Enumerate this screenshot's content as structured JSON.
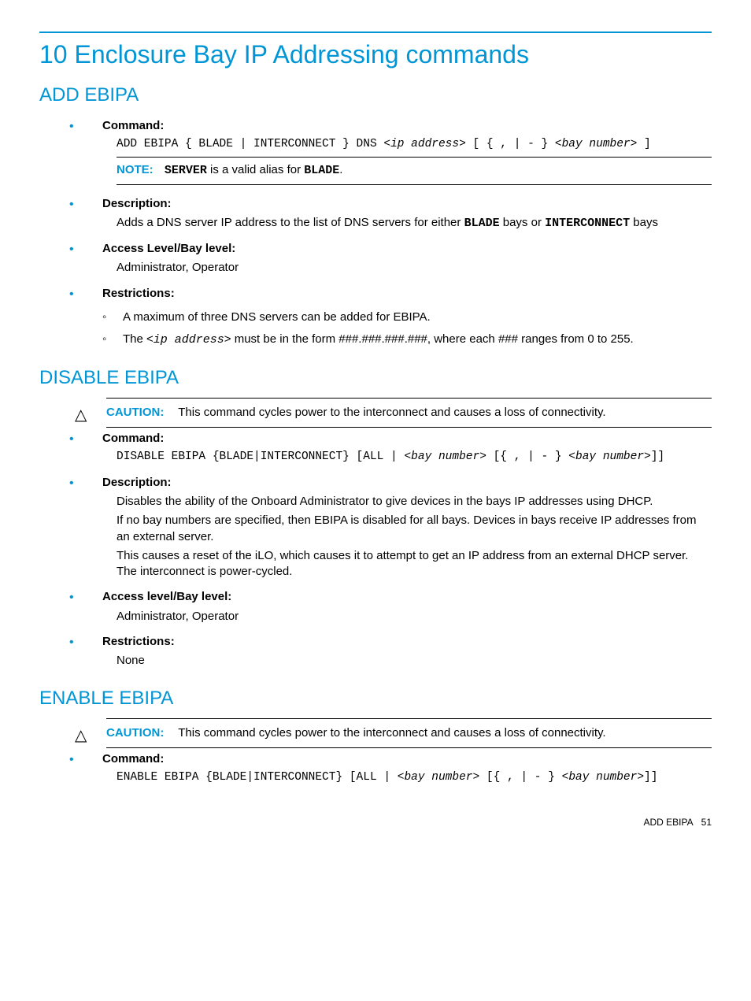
{
  "chapter_title": "10 Enclosure Bay IP Addressing commands",
  "sections": {
    "add": {
      "title": "ADD EBIPA",
      "command_label": "Command:",
      "syntax_plain1": "ADD EBIPA { BLADE | INTERCONNECT } DNS <",
      "syntax_ital1": "ip address",
      "syntax_plain2": "> [ { , | - } <",
      "syntax_ital2": "bay number",
      "syntax_plain3": "> ]",
      "note_label": "NOTE:",
      "note_pre": " ",
      "note_bold1": "SERVER",
      "note_mid": " is a valid alias for ",
      "note_bold2": "BLADE",
      "note_end": ".",
      "description_label": "Description:",
      "desc_pre": "Adds a DNS server IP address to the list of DNS servers for either ",
      "desc_b1": "BLADE",
      "desc_mid": " bays or ",
      "desc_b2": "INTERCONNECT",
      "desc_end": " bays",
      "access_label": "Access Level/Bay level:",
      "access_value": "Administrator, Operator",
      "restrictions_label": "Restrictions:",
      "r1": "A maximum of three DNS servers can be added for EBIPA.",
      "r2_pre": "The <",
      "r2_ital": "ip address",
      "r2_post": "> must be in the form ###.###.###.###, where each ### ranges from 0 to 255."
    },
    "disable": {
      "title": "DISABLE EBIPA",
      "caution_label": "CAUTION:",
      "caution_text": "This command cycles power to the interconnect and causes a loss of connectivity.",
      "command_label": "Command:",
      "syntax_plain1": "DISABLE EBIPA {BLADE|INTERCONNECT} [ALL | <",
      "syntax_ital1": "bay number",
      "syntax_plain2": "> [{ , | - }  <",
      "syntax_ital2": "bay number",
      "syntax_plain3": ">]]",
      "description_label": "Description:",
      "desc_p1": "Disables the ability of the Onboard Administrator to give devices in the bays IP addresses using DHCP.",
      "desc_p2": "If no bay numbers are specified, then EBIPA is disabled for all bays. Devices in bays receive IP addresses from an external server.",
      "desc_p3": "This causes a reset of the iLO, which causes it to attempt to get an IP address from an external DHCP server. The interconnect is power-cycled.",
      "access_label": "Access level/Bay level:",
      "access_value": "Administrator, Operator",
      "restrictions_label": "Restrictions:",
      "restrictions_value": "None"
    },
    "enable": {
      "title": "ENABLE EBIPA",
      "caution_label": "CAUTION:",
      "caution_text": "This command cycles power to the interconnect and causes a loss of connectivity.",
      "command_label": "Command:",
      "syntax_plain1": "ENABLE EBIPA {BLADE|INTERCONNECT} [ALL | <",
      "syntax_ital1": "bay number",
      "syntax_plain2": "> [{ , | - }  <",
      "syntax_ital2": "bay number",
      "syntax_plain3": ">]]"
    }
  },
  "footer": {
    "section": "ADD EBIPA",
    "page": "51"
  }
}
